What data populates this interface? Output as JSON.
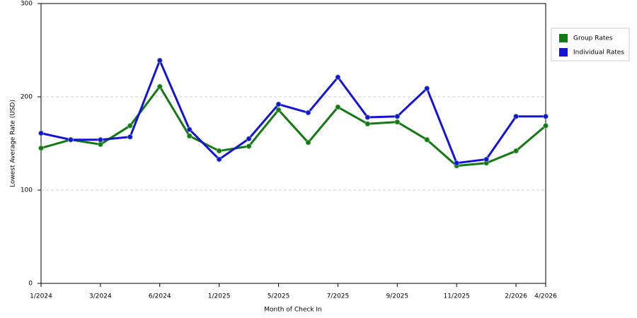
{
  "chart_data": {
    "type": "line",
    "x_label": "Month of Check In",
    "y_label": "Lowest Average Rate (USD)",
    "categories": [
      "1/2024",
      null,
      "3/2024",
      null,
      "6/2024",
      null,
      "1/2025",
      null,
      "5/2025",
      null,
      "7/2025",
      null,
      "9/2025",
      null,
      "11/2025",
      null,
      "2/2026",
      "4/2026"
    ],
    "series": [
      {
        "name": "Group Rates",
        "color": "#147814",
        "values": [
          145,
          154,
          149,
          169,
          211,
          158,
          142,
          147,
          186,
          151,
          189,
          171,
          173,
          154,
          126,
          129,
          142,
          169
        ]
      },
      {
        "name": "Individual Rates",
        "color": "#1414d2",
        "values": [
          161,
          154,
          154,
          157,
          239,
          165,
          133,
          155,
          192,
          183,
          221,
          178,
          179,
          209,
          129,
          133,
          179,
          179
        ]
      }
    ],
    "ylim": [
      0,
      300
    ],
    "yticks": [
      0,
      100,
      200,
      300
    ],
    "grid": true,
    "legend": "right"
  }
}
